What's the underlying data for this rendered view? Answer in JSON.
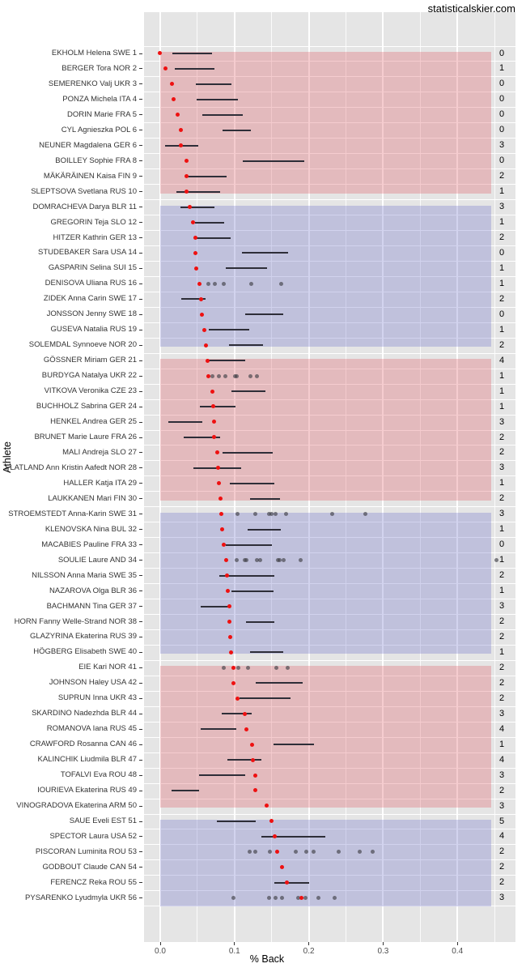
{
  "site_label": "statisticalskier.com",
  "chart_data": {
    "type": "scatter",
    "title": "",
    "xlabel": "% Back",
    "ylabel": "Athlete",
    "xlim": [
      -0.02,
      0.48
    ],
    "x_ticks": {
      "values": [
        0.0,
        0.1,
        0.2,
        0.3,
        0.4
      ],
      "labels": [
        "0.0",
        "0.1",
        "0.2",
        "0.3",
        "0.4"
      ]
    },
    "x_minor_ticks": [
      0.05,
      0.15,
      0.25,
      0.35,
      0.45
    ],
    "grid": "on",
    "band_colors": {
      "red": "#e3babd",
      "blue": "#bfc1dc"
    },
    "point_colors": {
      "median": "#ee1111",
      "race_point": "#40464a",
      "segment": "#2e2e38"
    },
    "bands": [
      {
        "rows": [
          1,
          10
        ],
        "color": "red"
      },
      {
        "rows": [
          11,
          20
        ],
        "color": "blue"
      },
      {
        "rows": [
          21,
          30
        ],
        "color": "red"
      },
      {
        "rows": [
          31,
          40
        ],
        "color": "blue"
      },
      {
        "rows": [
          41,
          50
        ],
        "color": "red"
      },
      {
        "rows": [
          51,
          56
        ],
        "color": "blue"
      }
    ],
    "band_x_range": [
      0.0,
      0.445
    ],
    "athletes": [
      {
        "label": "EKHOLM Helena SWE 1",
        "median": 0.0,
        "range": [
          0.016,
          0.07
        ],
        "points": [],
        "right_value": 0
      },
      {
        "label": "BERGER Tora NOR 2",
        "median": 0.007,
        "range": [
          0.02,
          0.073
        ],
        "points": [],
        "right_value": 1
      },
      {
        "label": "SEMERENKO Valj UKR 3",
        "median": 0.016,
        "range": [
          0.048,
          0.096
        ],
        "points": [],
        "right_value": 0
      },
      {
        "label": "PONZA Michela ITA 4",
        "median": 0.018,
        "range": [
          0.049,
          0.105
        ],
        "points": [],
        "right_value": 0
      },
      {
        "label": "DORIN Marie FRA 5",
        "median": 0.024,
        "range": [
          0.057,
          0.111
        ],
        "points": [],
        "right_value": 0
      },
      {
        "label": "CYL Agnieszka POL 6",
        "median": 0.028,
        "range": [
          0.084,
          0.122
        ],
        "points": [],
        "right_value": 0
      },
      {
        "label": "NEUNER Magdalena GER 6",
        "median": 0.028,
        "range": [
          0.006,
          0.051
        ],
        "points": [],
        "right_value": 3
      },
      {
        "label": "BOILLEY Sophie FRA 8",
        "median": 0.035,
        "range": [
          0.111,
          0.194
        ],
        "points": [],
        "right_value": 0
      },
      {
        "label": "MÄKÄRÄINEN Kaisa FIN 9",
        "median": 0.036,
        "range": [
          0.036,
          0.089
        ],
        "points": [],
        "right_value": 2
      },
      {
        "label": "SLEPTSOVA Svetlana RUS 10",
        "median": 0.036,
        "range": [
          0.022,
          0.081
        ],
        "points": [],
        "right_value": 1
      },
      {
        "label": "DOMRACHEVA Darya BLR 11",
        "median": 0.04,
        "range": [
          0.027,
          0.073
        ],
        "points": [],
        "right_value": 3
      },
      {
        "label": "GREGORIN Teja SLO 12",
        "median": 0.044,
        "range": [
          0.047,
          0.086
        ],
        "points": [],
        "right_value": 1
      },
      {
        "label": "HITZER Kathrin GER 13",
        "median": 0.047,
        "range": [
          0.047,
          0.095
        ],
        "points": [],
        "right_value": 2
      },
      {
        "label": "STUDEBAKER Sara USA 14",
        "median": 0.048,
        "range": [
          0.11,
          0.172
        ],
        "points": [],
        "right_value": 0
      },
      {
        "label": "GASPARIN Selina SUI 15",
        "median": 0.049,
        "range": [
          0.088,
          0.144
        ],
        "points": [],
        "right_value": 1
      },
      {
        "label": "DENISOVA Uliana RUS 16",
        "median": 0.053,
        "range": null,
        "points": [
          0.065,
          0.074,
          0.086,
          0.123,
          0.163
        ],
        "right_value": 1
      },
      {
        "label": "ZIDEK Anna Carin SWE 17",
        "median": 0.055,
        "range": [
          0.028,
          0.061
        ],
        "points": [],
        "right_value": 2
      },
      {
        "label": "JONSSON Jenny SWE 18",
        "median": 0.056,
        "range": [
          0.114,
          0.166
        ],
        "points": [],
        "right_value": 0
      },
      {
        "label": "GUSEVA Natalia RUS 19",
        "median": 0.06,
        "range": [
          0.065,
          0.12
        ],
        "points": [],
        "right_value": 1
      },
      {
        "label": "SOLEMDAL Synnoeve NOR 20",
        "median": 0.062,
        "range": [
          0.093,
          0.138
        ],
        "points": [],
        "right_value": 2
      },
      {
        "label": "GÖSSNER Miriam GER 21",
        "median": 0.064,
        "range": [
          0.065,
          0.114
        ],
        "points": [],
        "right_value": 4
      },
      {
        "label": "BURDYGA Natalya UKR 22",
        "median": 0.065,
        "range": null,
        "points": [
          0.07,
          0.079,
          0.088,
          0.101,
          0.103,
          0.122,
          0.13
        ],
        "right_value": 1
      },
      {
        "label": "VITKOVA Veronika CZE 23",
        "median": 0.07,
        "range": [
          0.096,
          0.142
        ],
        "points": [],
        "right_value": 1
      },
      {
        "label": "BUCHHOLZ Sabrina GER 24",
        "median": 0.072,
        "range": [
          0.053,
          0.101
        ],
        "points": [],
        "right_value": 1
      },
      {
        "label": "HENKEL Andrea GER 25",
        "median": 0.073,
        "range": [
          0.011,
          0.057
        ],
        "points": [],
        "right_value": 3
      },
      {
        "label": "BRUNET Marie Laure FRA 26",
        "median": 0.073,
        "range": [
          0.032,
          0.081
        ],
        "points": [],
        "right_value": 2
      },
      {
        "label": "MALI Andreja SLO 27",
        "median": 0.077,
        "range": [
          0.084,
          0.151
        ],
        "points": [],
        "right_value": 2
      },
      {
        "label": "FLATLAND Ann Kristin Aafedt NOR 28",
        "median": 0.078,
        "range": [
          0.045,
          0.109
        ],
        "points": [],
        "right_value": 3
      },
      {
        "label": "HALLER Katja ITA 29",
        "median": 0.079,
        "range": [
          0.094,
          0.154
        ],
        "points": [],
        "right_value": 1
      },
      {
        "label": "LAUKKANEN Mari FIN 30",
        "median": 0.081,
        "range": [
          0.121,
          0.161
        ],
        "points": [],
        "right_value": 2
      },
      {
        "label": "STROEMSTEDT Anna-Karin SWE 31",
        "median": 0.082,
        "range": null,
        "points": [
          0.104,
          0.128,
          0.147,
          0.15,
          0.155,
          0.169,
          0.231,
          0.276
        ],
        "right_value": 3
      },
      {
        "label": "KLENOVSKA Nina BUL 32",
        "median": 0.083,
        "range": [
          0.118,
          0.162
        ],
        "points": [],
        "right_value": 1
      },
      {
        "label": "MACABIES Pauline FRA 33",
        "median": 0.086,
        "range": [
          0.088,
          0.15
        ],
        "points": [],
        "right_value": 0
      },
      {
        "label": "SOULIE Laure AND 34",
        "median": 0.089,
        "range": null,
        "points": [
          0.103,
          0.114,
          0.116,
          0.13,
          0.134,
          0.158,
          0.161,
          0.166,
          0.189,
          0.453
        ],
        "right_value": 1
      },
      {
        "label": "NILSSON Anna Maria SWE 35",
        "median": 0.09,
        "range": [
          0.079,
          0.154
        ],
        "points": [],
        "right_value": 2
      },
      {
        "label": "NAZAROVA Olga BLR 36",
        "median": 0.091,
        "range": [
          0.096,
          0.152
        ],
        "points": [],
        "right_value": 1
      },
      {
        "label": "BACHMANN Tina GER 37",
        "median": 0.093,
        "range": [
          0.054,
          0.093
        ],
        "points": [],
        "right_value": 3
      },
      {
        "label": "HORN Fanny Welle-Strand NOR 38",
        "median": 0.093,
        "range": [
          0.116,
          0.154
        ],
        "points": [],
        "right_value": 2
      },
      {
        "label": "GLAZYRINA Ekaterina RUS 39",
        "median": 0.094,
        "range": null,
        "points": [],
        "right_value": 2
      },
      {
        "label": "HÖGBERG Elisabeth SWE 40",
        "median": 0.095,
        "range": [
          0.121,
          0.166
        ],
        "points": [],
        "right_value": 1
      },
      {
        "label": "EIE Kari NOR 41",
        "median": 0.099,
        "range": null,
        "points": [
          0.086,
          0.105,
          0.118,
          0.156,
          0.172
        ],
        "right_value": 2
      },
      {
        "label": "JOHNSON Haley USA 42",
        "median": 0.099,
        "range": [
          0.129,
          0.192
        ],
        "points": [],
        "right_value": 2
      },
      {
        "label": "SUPRUN Inna UKR 43",
        "median": 0.104,
        "range": [
          0.107,
          0.175
        ],
        "points": [],
        "right_value": 2
      },
      {
        "label": "SKARDINO Nadezhda BLR 44",
        "median": 0.114,
        "range": [
          0.083,
          0.123
        ],
        "points": [],
        "right_value": 3
      },
      {
        "label": "ROMANOVA Iana RUS 45",
        "median": 0.116,
        "range": [
          0.054,
          0.102
        ],
        "points": [],
        "right_value": 4
      },
      {
        "label": "CRAWFORD Rosanna CAN 46",
        "median": 0.124,
        "range": [
          0.152,
          0.207
        ],
        "points": [],
        "right_value": 1
      },
      {
        "label": "KALINCHIK Liudmila BLR 47",
        "median": 0.125,
        "range": [
          0.09,
          0.136
        ],
        "points": [],
        "right_value": 4
      },
      {
        "label": "TOFALVI Eva ROU 48",
        "median": 0.128,
        "range": [
          0.052,
          0.114
        ],
        "points": [],
        "right_value": 3
      },
      {
        "label": "IOURIEVA Ekaterina RUS 49",
        "median": 0.128,
        "range": [
          0.015,
          0.052
        ],
        "points": [],
        "right_value": 2
      },
      {
        "label": "VINOGRADOVA Ekaterina ARM 50",
        "median": 0.143,
        "range": null,
        "points": [],
        "right_value": 3
      },
      {
        "label": "SAUE Eveli EST 51",
        "median": 0.15,
        "range": [
          0.076,
          0.128
        ],
        "points": [],
        "right_value": 5
      },
      {
        "label": "SPECTOR Laura USA 52",
        "median": 0.154,
        "range": [
          0.136,
          0.222
        ],
        "points": [],
        "right_value": 4
      },
      {
        "label": "PISCORAN Luminita ROU 53",
        "median": 0.157,
        "range": null,
        "points": [
          0.12,
          0.128,
          0.148,
          0.183,
          0.197,
          0.206,
          0.24,
          0.269,
          0.286
        ],
        "right_value": 2
      },
      {
        "label": "GODBOUT Claude CAN 54",
        "median": 0.164,
        "range": null,
        "points": [],
        "right_value": 2
      },
      {
        "label": "FERENCZ Reka ROU 55",
        "median": 0.171,
        "range": [
          0.154,
          0.2
        ],
        "points": [],
        "right_value": 2
      },
      {
        "label": "PYSARENKO Lyudmyla UKR 56",
        "median": 0.19,
        "range": null,
        "points": [
          0.099,
          0.146,
          0.155,
          0.164,
          0.186,
          0.195,
          0.213,
          0.235
        ],
        "right_value": 3
      }
    ]
  }
}
